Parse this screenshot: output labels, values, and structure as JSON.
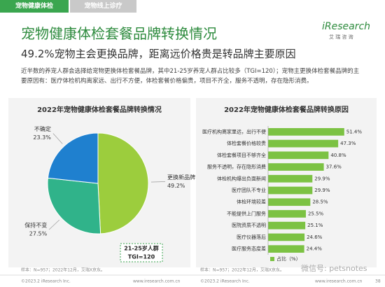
{
  "header": {
    "tabs": [
      "宠物健康体检",
      "宠物线上诊疗"
    ],
    "title": "宠物健康体检套餐品牌转换情况",
    "logo": "iResearch",
    "logo_sub": "艾 瑞 咨 询",
    "subtitle": "49.2%宠物主会更换品牌，距离远价格贵是转品牌主要原因",
    "description": "近半数的养宠人群会选择给宠物更换体检套餐品牌，其中21-25岁养宠人群占比较多（TGI=120）；宠物主更换体检套餐品牌的主要原因有：医疗体检机构离家远、出行不方便，体检套餐价格偏贵，项目不齐全，服务不透明，存在隐形消费。"
  },
  "chart_data": [
    {
      "type": "pie",
      "title": "2022年宠物健康体检套餐品牌转换情况",
      "categories": [
        "更换新品牌",
        "保持不变",
        "不确定"
      ],
      "values": [
        49.2,
        27.5,
        23.3
      ],
      "value_labels": [
        "49.2%",
        "27.5%",
        "23.3%"
      ],
      "colors": [
        "#9ccd3d",
        "#30b38a",
        "#1f80cf"
      ],
      "annotations": [
        "21-25岁人群",
        "TGI=120"
      ],
      "source": "样本：N=957；2022年12月，艾瑞X京东。"
    },
    {
      "type": "bar",
      "horizontal": true,
      "title": "2022年宠物健康体检套餐品牌转换原因",
      "categories": [
        "医疗机构离家里远，出行不便",
        "体检套餐价格较贵",
        "体检套餐项目不够齐全",
        "服务不透明，存在隐形消费",
        "体检机构爆出负面新闻",
        "医疗团队不专业",
        "体检环境较差",
        "不能提供上门服务",
        "医院资质不透明",
        "医疗仪器落后",
        "医疗服务态度差"
      ],
      "series": [
        {
          "name": "占比（%）",
          "color": "#7cc243",
          "values": [
            51.4,
            47.3,
            40.8,
            37.6,
            29.9,
            29.9,
            28.5,
            25.5,
            25.1,
            24.6,
            24.4
          ],
          "value_labels": [
            "51.4%",
            "47.3%",
            "40.8%",
            "37.6%",
            "29.9%",
            "29.9%",
            "28.5%",
            "25.5%",
            "25.1%",
            "24.6%",
            "24.4%"
          ]
        }
      ],
      "xlim": [
        0,
        60
      ],
      "source": "样本：N=957；2022年12月，艾瑞X京东。"
    }
  ],
  "footer": {
    "left": [
      "©2023.2 iResearch Inc.",
      "www.iresearch.com.cn"
    ],
    "right": [
      "©2023.2 iResearch Inc.",
      "www.iresearch.com.cn"
    ],
    "page": "38",
    "watermark": "微信号: petsnotes"
  }
}
